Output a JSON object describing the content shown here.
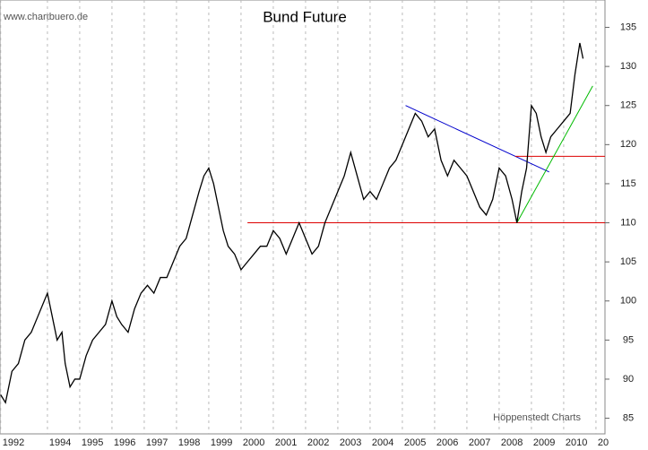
{
  "chart_data": {
    "type": "line",
    "title": "Bund Future",
    "source": "www.chartbuero.de",
    "credit": "Höppenstedt Charts",
    "x": [
      1992.55,
      1992.7,
      1992.9,
      1993.1,
      1993.3,
      1993.5,
      1993.7,
      1993.9,
      1994.0,
      1994.15,
      1994.3,
      1994.45,
      1994.55,
      1994.7,
      1994.85,
      1995.0,
      1995.2,
      1995.4,
      1995.6,
      1995.8,
      1996.0,
      1996.15,
      1996.3,
      1996.5,
      1996.7,
      1996.9,
      1997.1,
      1997.3,
      1997.5,
      1997.7,
      1997.9,
      1998.1,
      1998.3,
      1998.5,
      1998.7,
      1998.85,
      1999.0,
      1999.15,
      1999.3,
      1999.45,
      1999.6,
      1999.8,
      2000.0,
      2000.2,
      2000.4,
      2000.6,
      2000.8,
      2001.0,
      2001.2,
      2001.4,
      2001.6,
      2001.8,
      2002.0,
      2002.2,
      2002.4,
      2002.6,
      2002.8,
      2003.0,
      2003.2,
      2003.4,
      2003.6,
      2003.8,
      2004.0,
      2004.2,
      2004.4,
      2004.6,
      2004.8,
      2005.0,
      2005.2,
      2005.4,
      2005.6,
      2005.8,
      2006.0,
      2006.2,
      2006.4,
      2006.6,
      2006.8,
      2007.0,
      2007.2,
      2007.4,
      2007.6,
      2007.8,
      2008.0,
      2008.2,
      2008.4,
      2008.55,
      2008.7,
      2008.85,
      2009.0,
      2009.15,
      2009.3,
      2009.45,
      2009.6,
      2009.8,
      2010.0,
      2010.2,
      2010.35,
      2010.5,
      2010.6
    ],
    "series": [
      {
        "color": "#000000",
        "values": [
          88,
          87,
          91,
          92,
          95,
          96,
          98,
          100,
          101,
          98,
          95,
          96,
          92,
          89,
          90,
          90,
          93,
          95,
          96,
          97,
          100,
          98,
          97,
          96,
          99,
          101,
          102,
          101,
          103,
          103,
          105,
          107,
          108,
          111,
          114,
          116,
          117,
          115,
          112,
          109,
          107,
          106,
          104,
          105,
          106,
          107,
          107,
          109,
          108,
          106,
          108,
          110,
          108,
          106,
          107,
          110,
          112,
          114,
          116,
          119,
          116,
          113,
          114,
          113,
          115,
          117,
          118,
          120,
          122,
          124,
          123,
          121,
          122,
          118,
          116,
          118,
          117,
          116,
          114,
          112,
          111,
          113,
          117,
          116,
          113,
          110,
          114,
          117,
          125,
          124,
          121,
          119,
          121,
          122,
          123,
          124,
          129,
          133,
          131
        ]
      }
    ],
    "trendlines": [
      {
        "color": "#0000cc",
        "x": [
          2005.1,
          2009.55
        ],
        "values": [
          125,
          116.5
        ]
      },
      {
        "color": "#dd0000",
        "x": [
          2008.5,
          2011.28
        ],
        "values": [
          118.5,
          118.5
        ]
      },
      {
        "color": "#dd0000",
        "x": [
          2000.2,
          2011.28
        ],
        "values": [
          110,
          110
        ]
      },
      {
        "color": "#00bb00",
        "x": [
          2008.55,
          2010.9
        ],
        "values": [
          110,
          127.5
        ]
      }
    ],
    "xlim": [
      1992.53,
      2011.28
    ],
    "ylim": [
      83,
      138.5
    ],
    "xticks": [
      {
        "value": 1992.55,
        "label": "1992"
      },
      1994,
      1995,
      1996,
      1997,
      1998,
      1999,
      2000,
      2001,
      2002,
      2003,
      2004,
      2005,
      2006,
      2007,
      2008,
      2009,
      2010,
      {
        "value": 2011,
        "label": "20"
      }
    ],
    "yticks": [
      85,
      90,
      95,
      100,
      105,
      110,
      115,
      120,
      125,
      130,
      135
    ],
    "grid": true
  }
}
